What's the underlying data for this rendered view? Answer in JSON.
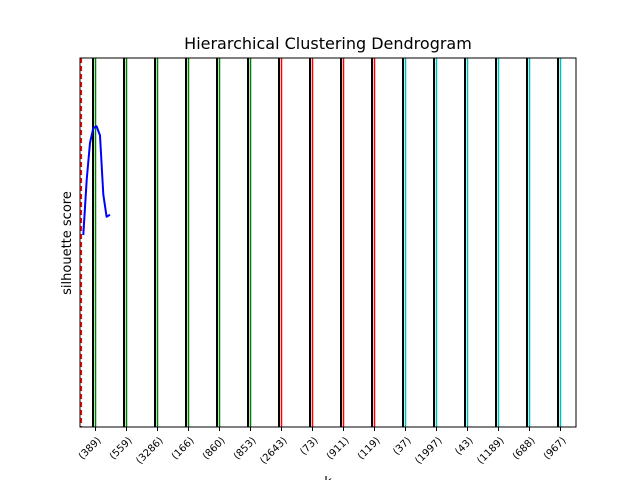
{
  "chart_data": {
    "type": "line",
    "title": "Hierarchical Clustering Dendrogram",
    "xlabel": "k",
    "ylabel": "silhouette score",
    "grid": false,
    "legend": "none",
    "leaves": [
      {
        "label": "(389)",
        "cluster": "green"
      },
      {
        "label": "(559)",
        "cluster": "green"
      },
      {
        "label": "(3286)",
        "cluster": "green"
      },
      {
        "label": "(166)",
        "cluster": "green"
      },
      {
        "label": "(860)",
        "cluster": "green"
      },
      {
        "label": "(853)",
        "cluster": "green"
      },
      {
        "label": "(2643)",
        "cluster": "red"
      },
      {
        "label": "(73)",
        "cluster": "red"
      },
      {
        "label": "(911)",
        "cluster": "red"
      },
      {
        "label": "(119)",
        "cluster": "red"
      },
      {
        "label": "(37)",
        "cluster": "cyan"
      },
      {
        "label": "(1997)",
        "cluster": "cyan"
      },
      {
        "label": "(43)",
        "cluster": "cyan"
      },
      {
        "label": "(1189)",
        "cluster": "cyan"
      },
      {
        "label": "(688)",
        "cluster": "cyan"
      },
      {
        "label": "(967)",
        "cluster": "cyan"
      }
    ],
    "colors": {
      "green": "#008000",
      "red": "#ff0000",
      "cyan": "#00bfbf",
      "black": "#000000",
      "score_line": "#0000ff",
      "cut_line": "#ff0000"
    },
    "score_series": {
      "x": [
        2,
        3,
        4,
        5,
        6,
        7,
        8,
        9,
        10
      ],
      "y": [
        0.52,
        0.67,
        0.77,
        0.81,
        0.815,
        0.79,
        0.63,
        0.57,
        0.575
      ]
    },
    "score_ylim": [
      0.0,
      1.0
    ],
    "score_xlim": [
      1,
      150
    ],
    "cut_line_x": 1.4
  }
}
